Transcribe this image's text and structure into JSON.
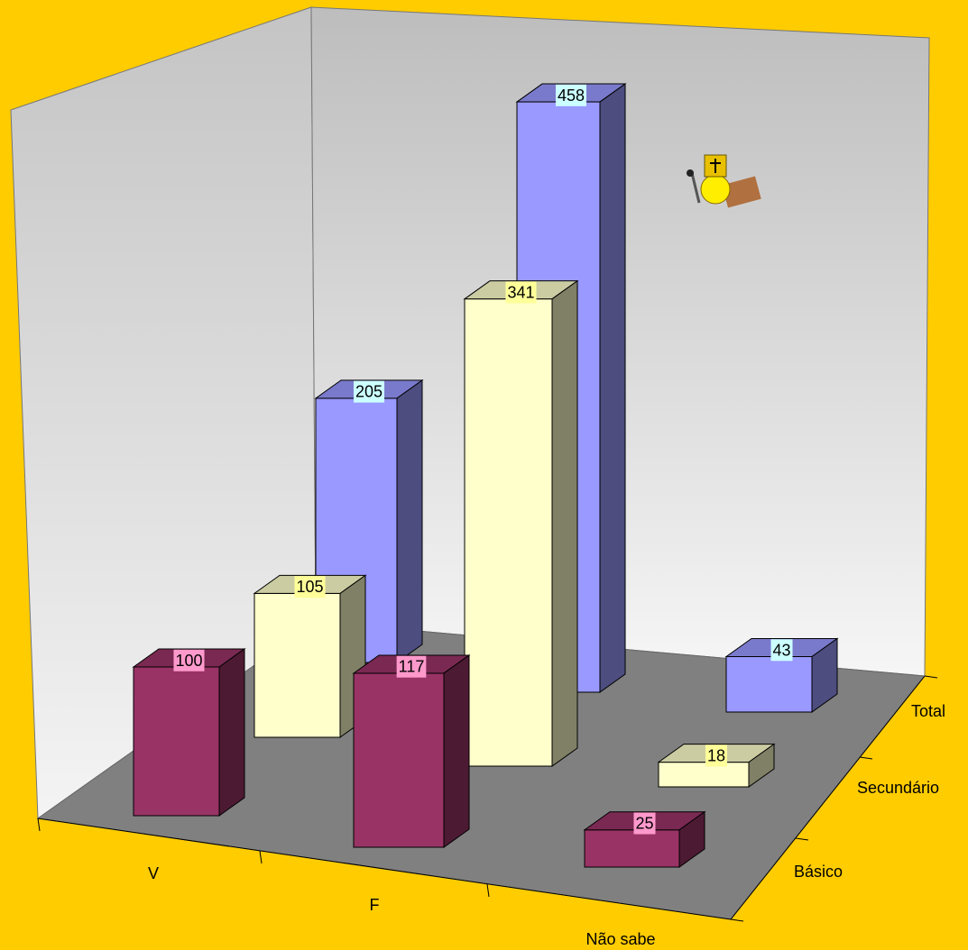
{
  "chart_data": {
    "type": "bar3d",
    "categories": [
      "V",
      "F",
      "Não sabe"
    ],
    "series": [
      {
        "name": "Básico",
        "color": "#993366",
        "label_color": "#ff99cc",
        "values": [
          100,
          117,
          25
        ]
      },
      {
        "name": "Secundário",
        "color": "#ffffcc",
        "label_color": "#ffff99",
        "values": [
          105,
          341,
          18
        ]
      },
      {
        "name": "Total",
        "color": "#9999ff",
        "label_color": "#ccffff",
        "values": [
          205,
          458,
          43
        ]
      }
    ],
    "background": "#ffcc00"
  }
}
